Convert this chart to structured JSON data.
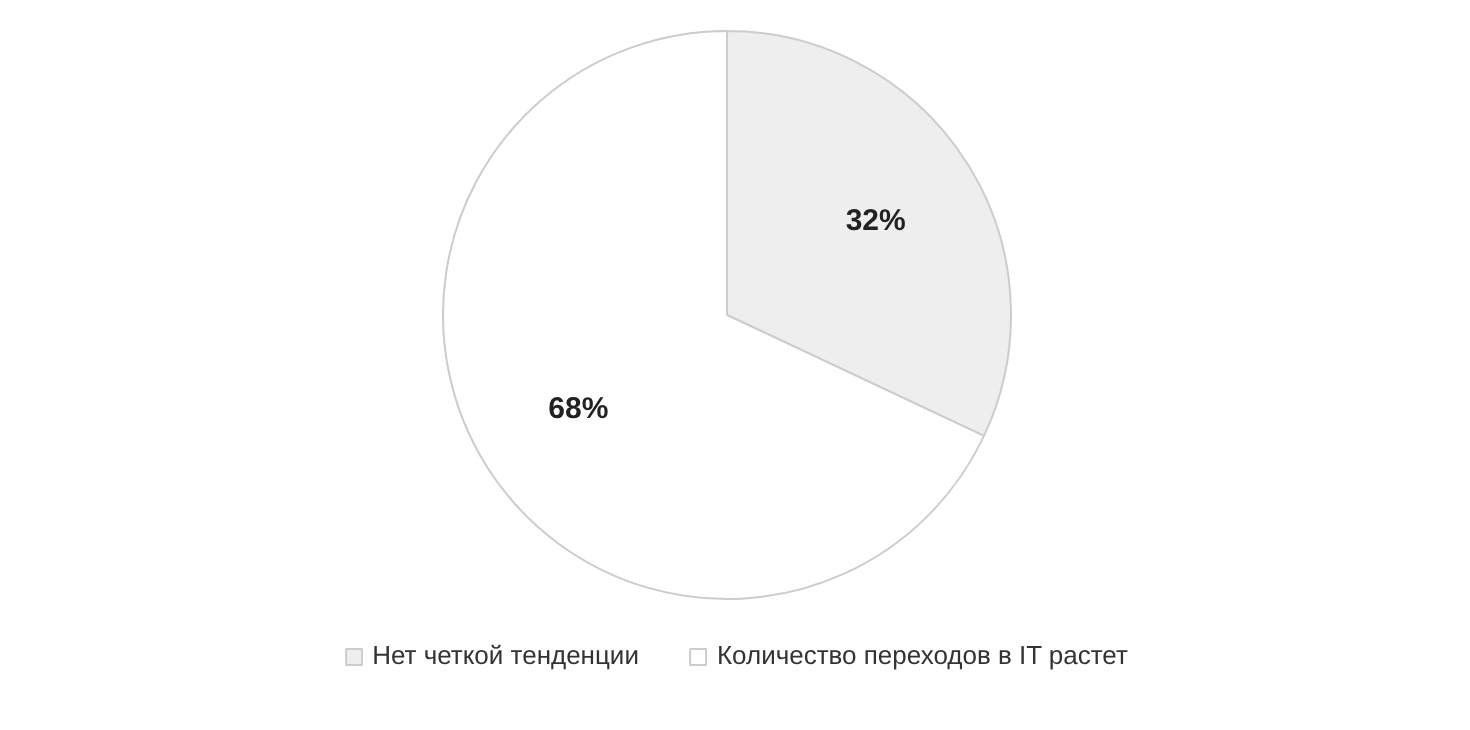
{
  "chart_data": {
    "type": "pie",
    "categories": [
      "Нет четкой тенденции",
      "Количество переходов в IT растет"
    ],
    "values": [
      32,
      68
    ],
    "colors": [
      "#eeeeee",
      "#ffffff"
    ],
    "value_labels": [
      "32%",
      "68%"
    ],
    "legend": "bottom"
  }
}
